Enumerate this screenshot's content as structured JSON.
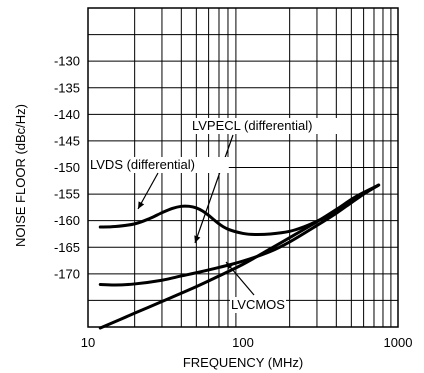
{
  "chart_data": {
    "type": "line",
    "xlabel": "FREQUENCY (MHz)",
    "ylabel": "NOISE FLOOR (dBc/Hz)",
    "x_scale": "log",
    "xlim": [
      10,
      1000
    ],
    "ylim": [
      -180,
      -120
    ],
    "x_ticks": [
      "10",
      "100",
      "1000"
    ],
    "y_ticks": [
      "-130",
      "-135",
      "-140",
      "-145",
      "-150",
      "-155",
      "-160",
      "-165",
      "-170"
    ],
    "grid": true,
    "series": [
      {
        "name": "LVDS (differential)",
        "x": [
          12,
          15,
          20,
          25,
          30,
          35,
          40,
          45,
          50,
          55,
          60,
          70,
          80,
          100,
          120,
          150,
          200,
          250,
          300,
          400,
          500,
          600,
          750
        ],
        "y": [
          -161.2,
          -161.1,
          -160.6,
          -159.6,
          -158.5,
          -157.7,
          -157.3,
          -157.3,
          -157.6,
          -158.2,
          -159.0,
          -160.6,
          -161.6,
          -162.4,
          -162.6,
          -162.5,
          -162.0,
          -161.1,
          -160.1,
          -158.3,
          -156.6,
          -155.0,
          -153.3
        ]
      },
      {
        "name": "LVPECL (differential)",
        "x": [
          12,
          15,
          20,
          30,
          40,
          50,
          70,
          100,
          150,
          200,
          300,
          400,
          500,
          600,
          750
        ],
        "y": [
          -172.0,
          -172.1,
          -171.9,
          -171.2,
          -170.4,
          -169.8,
          -168.8,
          -167.6,
          -165.8,
          -164.0,
          -160.9,
          -158.6,
          -156.6,
          -155.0,
          -153.3
        ]
      },
      {
        "name": "LVCMOS",
        "x": [
          12,
          20,
          30,
          50,
          70,
          100,
          150,
          200,
          300,
          400,
          500,
          600,
          750
        ],
        "y": [
          -180.2,
          -177.4,
          -175.2,
          -172.4,
          -170.4,
          -168.2,
          -165.3,
          -163.2,
          -160.2,
          -157.9,
          -156.0,
          -154.7,
          -153.3
        ]
      }
    ],
    "annotations": [
      {
        "text": "LVPECL (differential)",
        "series": "LVPECL (differential)"
      },
      {
        "text": "LVDS (differential)",
        "series": "LVDS (differential)"
      },
      {
        "text": "LVCMOS",
        "series": "LVCMOS"
      }
    ]
  }
}
